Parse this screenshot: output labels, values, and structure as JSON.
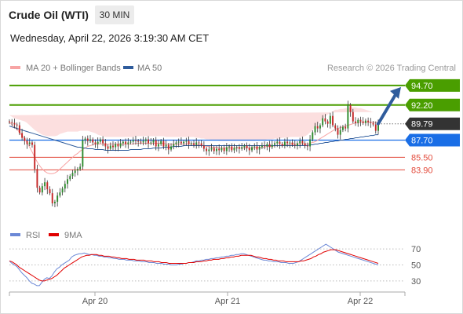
{
  "header": {
    "instrument": "Crude Oil (WTI)",
    "timeframe": "30 MIN",
    "datetime": "Wednesday, April 22, 2026 3:19:30 AM CET"
  },
  "colors": {
    "resistance": "#4a9e00",
    "support": "#e34a3b",
    "current": "#333333",
    "pivot": "#1a6ee6",
    "ma50": "#2f5c9c",
    "bollinger": "#f7a4a4",
    "rsi": "#6b88d6",
    "rsi_ma": "#e00000",
    "candle_up": "#2e8b2e",
    "candle_down": "#c62828"
  },
  "chart_data": [
    {
      "type": "candlestick",
      "legend": [
        {
          "name": "MA 20 + Bollinger Bands",
          "color": "#f7a4a4"
        },
        {
          "name": "MA 50",
          "color": "#2f5c9c"
        }
      ],
      "credit": "Research © 2026 Trading Central",
      "ylim": [
        78.3,
        96.0
      ],
      "x_ticks": [
        "Apr 20",
        "Apr 21",
        "Apr 22"
      ],
      "levels": [
        {
          "value": 94.7,
          "label": "94.70",
          "kind": "resistance"
        },
        {
          "value": 92.2,
          "label": "92.20",
          "kind": "resistance"
        },
        {
          "value": 89.79,
          "label": "89.79",
          "kind": "current"
        },
        {
          "value": 87.7,
          "label": "87.70",
          "kind": "pivot"
        },
        {
          "value": 85.5,
          "label": "85.50",
          "kind": "support"
        },
        {
          "value": 83.9,
          "label": "83.90",
          "kind": "support"
        }
      ],
      "forecast_arrow": {
        "from": 89.8,
        "to": 94.4
      },
      "close": [
        90.0,
        89.9,
        89.7,
        89.6,
        88.6,
        88.0,
        87.6,
        87.2,
        87.4,
        87.1,
        84.0,
        81.6,
        81.0,
        81.8,
        82.3,
        81.4,
        80.9,
        79.6,
        79.8,
        80.6,
        81.0,
        81.5,
        82.1,
        82.7,
        83.1,
        83.5,
        83.8,
        84.0,
        84.3,
        87.7,
        87.9,
        87.6,
        87.8,
        87.4,
        87.2,
        87.5,
        87.8,
        87.3,
        86.9,
        86.6,
        87.0,
        86.8,
        87.2,
        86.9,
        87.3,
        87.5,
        87.2,
        87.4,
        87.5,
        87.7,
        87.6,
        87.5,
        87.4,
        87.6,
        87.8,
        87.3,
        87.4,
        87.7,
        86.9,
        87.2,
        87.6,
        86.9,
        87.1,
        86.5,
        86.9,
        87.2,
        87.4,
        87.5,
        87.3,
        87.5,
        87.6,
        87.2,
        87.3,
        87.1,
        87.4,
        87.3,
        87.0,
        86.6,
        86.3,
        86.5,
        86.7,
        86.3,
        86.6,
        86.4,
        86.7,
        86.3,
        86.8,
        86.9,
        86.4,
        86.7,
        86.8,
        86.6,
        86.8,
        87.0,
        86.7,
        86.4,
        86.8,
        86.9,
        86.5,
        86.8,
        87.0,
        86.9,
        87.2,
        86.8,
        87.1,
        87.3,
        87.5,
        87.2,
        87.0,
        87.5,
        87.3,
        87.4,
        87.1,
        87.0,
        87.3,
        87.6,
        87.3,
        87.0,
        86.9,
        87.8,
        88.7,
        89.5,
        89.2,
        89.6,
        90.5,
        90.1,
        89.8,
        90.8,
        89.6,
        89.2,
        88.4,
        89.0,
        89.4,
        89.2,
        92.2,
        91.3,
        90.1,
        89.9,
        90.3,
        90.1,
        89.9,
        90.2,
        90.0,
        89.9,
        89.7,
        88.9,
        89.79
      ],
      "ma20": [
        90.0,
        89.7,
        89.4,
        89.1,
        88.7,
        88.3,
        87.9,
        87.4,
        86.8,
        86.2,
        85.5,
        84.9,
        84.4,
        84.0,
        83.7,
        83.5,
        83.4,
        83.4,
        83.5,
        83.7,
        84.0,
        84.3,
        84.6,
        84.9,
        85.2,
        85.5,
        85.8,
        86.0,
        86.3,
        86.5,
        86.7,
        86.9,
        87.0,
        87.1,
        87.2,
        87.2,
        87.2,
        87.2,
        87.2,
        87.2,
        87.2,
        87.2,
        87.2,
        87.2,
        87.2,
        87.2,
        87.2,
        87.2,
        87.2,
        87.2,
        87.3,
        87.3,
        87.3,
        87.3,
        87.3,
        87.3,
        87.3,
        87.3,
        87.3,
        87.3,
        87.3,
        87.3,
        87.2,
        87.2,
        87.2,
        87.2,
        87.2,
        87.2,
        87.2,
        87.2,
        87.2,
        87.2,
        87.2,
        87.2,
        87.1,
        87.1,
        87.0,
        87.0,
        86.9,
        86.9,
        86.8,
        86.8,
        86.8,
        86.7,
        86.7,
        86.7,
        86.7,
        86.7,
        86.7,
        86.7,
        86.7,
        86.7,
        86.7,
        86.7,
        86.7,
        86.7,
        86.7,
        86.7,
        86.8,
        86.8,
        86.8,
        86.8,
        86.9,
        86.9,
        86.9,
        87.0,
        87.0,
        87.0,
        87.1,
        87.1,
        87.1,
        87.2,
        87.2,
        87.2,
        87.2,
        87.2,
        87.2,
        87.2,
        87.2,
        87.3,
        87.4,
        87.5,
        87.7,
        87.9,
        88.1,
        88.3,
        88.5,
        88.7,
        88.9,
        89.1,
        89.2,
        89.3,
        89.4,
        89.5,
        89.6,
        89.7,
        89.8,
        89.9,
        89.9,
        90.0,
        90.0,
        90.0,
        90.0,
        90.0,
        90.0,
        90.0,
        89.9
      ],
      "ma50": [
        89.5,
        89.4,
        89.3,
        89.2,
        89.1,
        89.0,
        88.9,
        88.8,
        88.7,
        88.6,
        88.5,
        88.4,
        88.3,
        88.2,
        88.1,
        88.0,
        87.9,
        87.8,
        87.7,
        87.6,
        87.5,
        87.4,
        87.3,
        87.2,
        87.1,
        87.0,
        86.9,
        86.8,
        86.8,
        86.7,
        86.7,
        86.6,
        86.6,
        86.6,
        86.5,
        86.5,
        86.5,
        86.5,
        86.4,
        86.4,
        86.4,
        86.4,
        86.4,
        86.4,
        86.4,
        86.4,
        86.4,
        86.4,
        86.5,
        86.5,
        86.5,
        86.5,
        86.5,
        86.6,
        86.6,
        86.6,
        86.6,
        86.7,
        86.7,
        86.7,
        86.7,
        86.8,
        86.8,
        86.8,
        86.8,
        86.9,
        86.9,
        86.9,
        86.9,
        87.0,
        87.0,
        87.0,
        87.0,
        87.0,
        87.0,
        87.0,
        87.0,
        87.0,
        87.0,
        87.0,
        87.0,
        87.0,
        87.0,
        87.0,
        87.0,
        87.0,
        87.0,
        87.0,
        87.0,
        87.0,
        87.0,
        87.0,
        87.0,
        87.0,
        87.0,
        87.0,
        87.0,
        87.0,
        87.0,
        87.0,
        87.0,
        87.0,
        87.0,
        87.0,
        87.0,
        87.0,
        87.0,
        87.0,
        87.0,
        87.0,
        87.0,
        87.0,
        87.0,
        87.0,
        87.0,
        87.0,
        87.0,
        87.0,
        87.0,
        87.1,
        87.1,
        87.2,
        87.2,
        87.3,
        87.3,
        87.4,
        87.4,
        87.5,
        87.5,
        87.6,
        87.6,
        87.7,
        87.7,
        87.8,
        87.8,
        87.9,
        87.9,
        88.0,
        88.0,
        88.1,
        88.1,
        88.2,
        88.2,
        88.3,
        88.3,
        88.4,
        88.4
      ],
      "band_width": [
        0.9,
        1.0,
        1.1,
        1.3,
        1.6,
        1.9,
        2.2,
        2.5,
        2.8,
        3.1,
        3.5,
        3.9,
        4.2,
        4.4,
        4.6,
        4.7,
        4.8,
        4.8,
        4.7,
        4.6,
        4.5,
        4.3,
        4.1,
        3.9,
        3.6,
        3.3,
        3.0,
        2.8,
        2.6,
        2.4,
        2.2,
        2.0,
        1.8,
        1.6,
        1.4,
        1.2,
        1.1,
        1.0,
        0.9,
        0.9,
        0.9,
        0.9,
        0.9,
        0.9,
        0.9,
        0.9,
        0.9,
        0.9,
        0.9,
        0.9,
        0.9,
        0.9,
        0.9,
        0.9,
        0.9,
        0.9,
        0.9,
        0.9,
        0.9,
        0.9,
        0.9,
        0.9,
        0.9,
        0.9,
        0.9,
        0.9,
        0.9,
        0.9,
        0.9,
        0.9,
        0.9,
        0.9,
        0.9,
        0.9,
        0.9,
        0.9,
        0.9,
        0.9,
        0.9,
        0.9,
        0.9,
        0.9,
        0.9,
        0.9,
        0.9,
        0.9,
        0.9,
        0.9,
        0.9,
        0.9,
        0.9,
        0.9,
        0.9,
        0.9,
        0.9,
        0.9,
        0.9,
        0.9,
        0.9,
        0.9,
        0.9,
        0.9,
        0.9,
        0.9,
        0.9,
        0.9,
        0.9,
        0.9,
        0.9,
        0.9,
        0.9,
        0.9,
        0.9,
        0.9,
        0.9,
        0.9,
        0.9,
        1.0,
        1.2,
        1.4,
        1.6,
        1.8,
        2.0,
        2.2,
        2.3,
        2.4,
        2.5,
        2.5,
        2.5,
        2.5,
        2.4,
        2.4,
        2.3,
        2.3,
        2.2,
        2.2,
        2.1,
        2.0,
        1.9,
        1.8,
        1.7,
        1.6,
        1.5,
        1.4,
        1.3
      ]
    },
    {
      "type": "line",
      "legend": [
        {
          "name": "RSI",
          "color": "#6b88d6"
        },
        {
          "name": "9MA",
          "color": "#e00000"
        }
      ],
      "ylim": [
        20,
        80
      ],
      "y_ticks": [
        70,
        50,
        30
      ],
      "rsi": [
        55,
        52,
        50,
        48,
        44,
        40,
        37,
        34,
        30,
        27,
        26,
        24,
        24,
        28,
        32,
        34,
        33,
        36,
        41,
        45,
        47,
        50,
        52,
        54,
        56,
        60,
        62,
        63,
        64,
        64,
        65,
        64,
        63,
        63,
        62,
        62,
        61,
        61,
        60,
        60,
        59,
        59,
        58,
        58,
        57,
        57,
        57,
        56,
        56,
        56,
        55,
        55,
        55,
        54,
        54,
        54,
        53,
        53,
        53,
        52,
        52,
        52,
        51,
        51,
        51,
        50,
        50,
        50,
        51,
        51,
        52,
        52,
        53,
        53,
        54,
        55,
        55,
        56,
        56,
        57,
        57,
        58,
        58,
        59,
        59,
        60,
        60,
        61,
        61,
        62,
        62,
        63,
        63,
        64,
        64,
        63,
        62,
        61,
        60,
        59,
        58,
        57,
        56,
        56,
        55,
        55,
        54,
        54,
        54,
        53,
        53,
        53,
        52,
        52,
        52,
        53,
        54,
        56,
        58,
        60,
        62,
        64,
        66,
        68,
        70,
        72,
        74,
        76,
        74,
        72,
        70,
        68,
        66,
        65,
        64,
        63,
        62,
        61,
        60,
        59,
        58,
        57,
        56,
        55,
        54,
        53,
        52,
        51,
        50
      ],
      "rsi_ma": [
        55,
        54,
        52,
        50,
        47,
        45,
        43,
        41,
        39,
        37,
        35,
        33,
        31,
        30,
        30,
        31,
        32,
        33,
        35,
        37,
        40,
        43,
        46,
        48,
        50,
        52,
        54,
        56,
        58,
        60,
        61,
        62,
        62,
        63,
        63,
        63,
        62,
        62,
        61,
        61,
        61,
        60,
        60,
        59,
        59,
        58,
        58,
        58,
        57,
        57,
        57,
        56,
        56,
        56,
        56,
        55,
        55,
        55,
        54,
        54,
        54,
        53,
        53,
        53,
        52,
        52,
        52,
        52,
        52,
        52,
        52,
        52,
        53,
        53,
        53,
        54,
        54,
        54,
        55,
        55,
        56,
        56,
        57,
        57,
        57,
        58,
        58,
        59,
        59,
        60,
        60,
        61,
        61,
        62,
        62,
        62,
        62,
        62,
        61,
        60,
        60,
        59,
        58,
        58,
        57,
        57,
        56,
        56,
        55,
        55,
        55,
        54,
        54,
        54,
        54,
        54,
        54,
        55,
        55,
        56,
        57,
        58,
        60,
        61,
        63,
        64,
        66,
        67,
        68,
        69,
        69,
        69,
        68,
        67,
        66,
        65,
        64,
        63,
        62,
        61,
        60,
        59,
        58,
        57,
        56,
        55,
        54,
        53,
        52
      ]
    }
  ]
}
